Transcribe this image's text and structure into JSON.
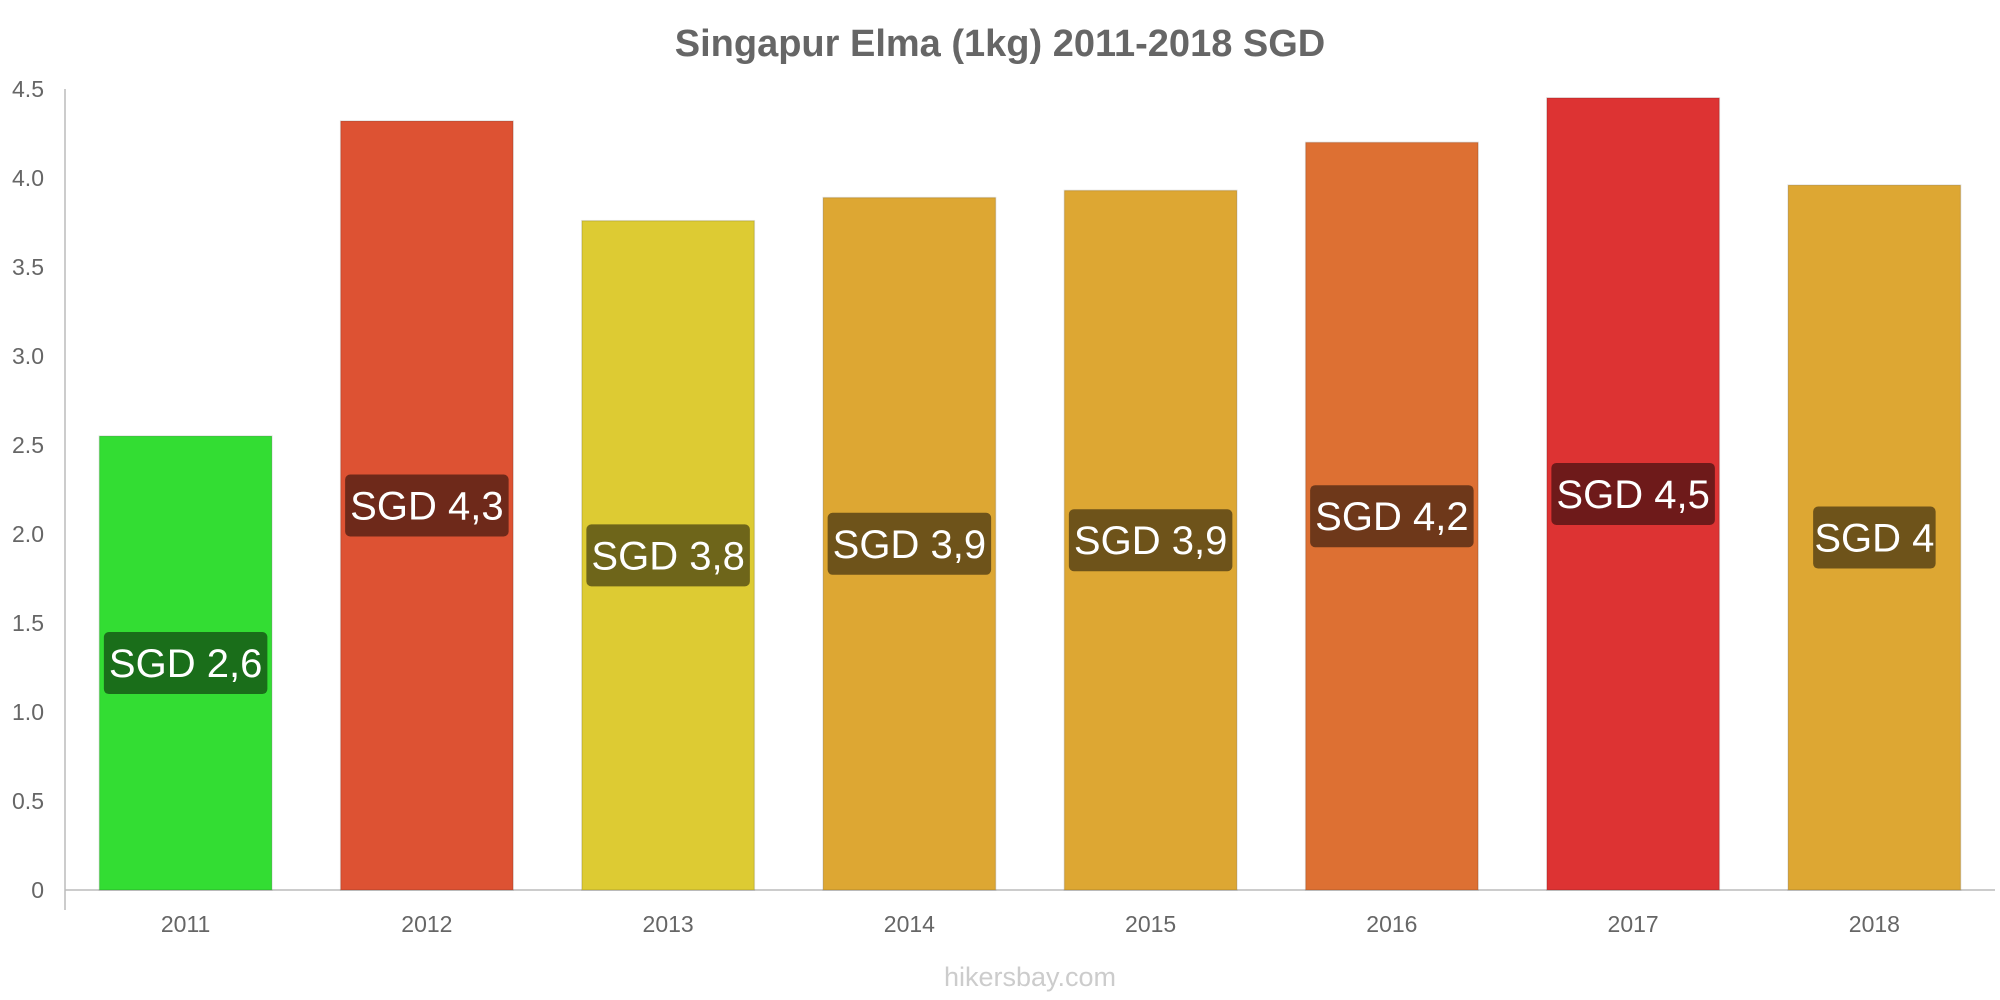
{
  "chart_data": {
    "type": "bar",
    "title": "Singapur Elma (1kg) 2011-2018 SGD",
    "xlabel": "",
    "ylabel": "",
    "categories": [
      "2011",
      "2012",
      "2013",
      "2014",
      "2015",
      "2016",
      "2017",
      "2018"
    ],
    "values": [
      2.55,
      4.32,
      3.76,
      3.89,
      3.93,
      4.2,
      4.45,
      3.96
    ],
    "data_labels": [
      "SGD 2,6",
      "SGD 4,3",
      "SGD 3,8",
      "SGD 3,9",
      "SGD 3,9",
      "SGD 4,2",
      "SGD 4,5",
      "SGD 4"
    ],
    "bar_colors": [
      "#33dd33",
      "#dd5233",
      "#ddcb33",
      "#dda733",
      "#dda733",
      "#dd7033",
      "#dd3333",
      "#dda733"
    ],
    "label_colors": [
      "#1a6e1a",
      "#6e291a",
      "#6e651a",
      "#6e531a",
      "#6e531a",
      "#6e381a",
      "#6e1a1a",
      "#6e531a"
    ],
    "ylim": [
      0,
      4.5
    ],
    "yticks": [
      "0",
      "0.5",
      "1.0",
      "1.5",
      "2.0",
      "2.5",
      "3.0",
      "3.5",
      "4.0",
      "4.5"
    ],
    "grid": false,
    "legend": "none"
  },
  "watermark": "hikersbay.com"
}
